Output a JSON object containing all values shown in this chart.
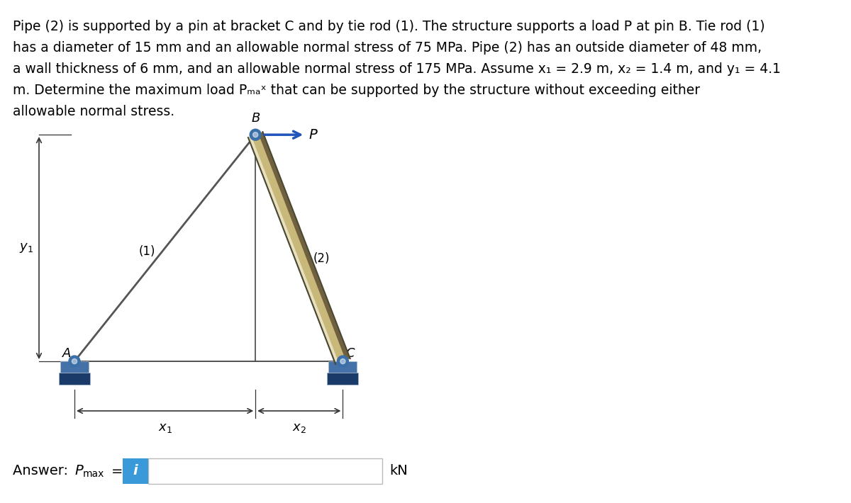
{
  "background_color": "#ffffff",
  "text_color": "#000000",
  "problem_text_line1": "Pipe (2) is supported by a pin at bracket C and by tie rod (1). The structure supports a load P at pin B. Tie rod (1)",
  "problem_text_line2": "has a diameter of 15 mm and an allowable normal stress of 75 MPa. Pipe (2) has an outside diameter of 48 mm,",
  "problem_text_line3": "a wall thickness of 6 mm, and an allowable normal stress of 175 MPa. Assume x₁ = 2.9 m, x₂ = 1.4 m, and y₁ = 4.1",
  "problem_text_line4": "m. Determine the maximum load Pₘₐˣ that can be supported by the structure without exceeding either",
  "problem_text_line5": "allowable normal stress.",
  "diagram": {
    "A": [
      0.0,
      0.0
    ],
    "B": [
      2.9,
      4.1
    ],
    "C": [
      4.3,
      0.0
    ],
    "bracket_color_light": "#4472a8",
    "bracket_color_dark": "#1a3a6a",
    "tie_rod_color": "#555555",
    "pipe_color_lightest": "#e8dfc0",
    "pipe_color_light": "#c8b87a",
    "pipe_color_dark": "#706040",
    "pipe_color_edge": "#484830",
    "pin_color": "#3a6fa8",
    "arrow_color": "#2255bb",
    "dim_color": "#333333"
  },
  "answer_box": {
    "box_color": "#3a9ad9",
    "icon": "i"
  }
}
